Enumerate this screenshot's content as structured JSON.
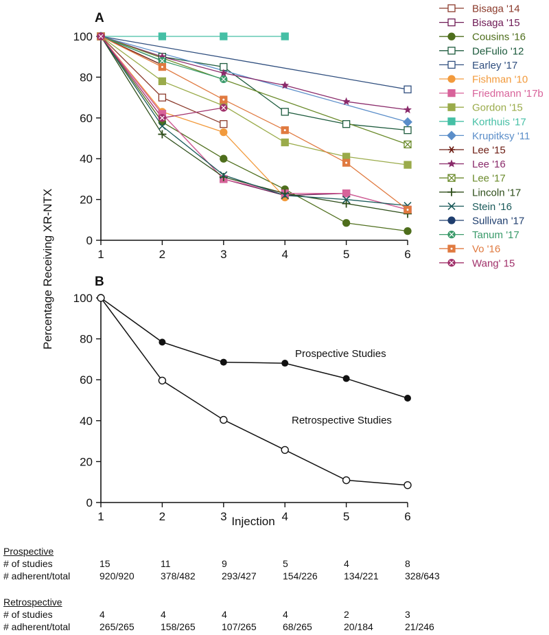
{
  "chart_data": [
    {
      "panel": "A",
      "type": "line",
      "xlabel": "",
      "ylabel": "Percentage Receiving XR-NTX",
      "x_ticks": [
        1,
        2,
        3,
        4,
        5,
        6
      ],
      "xlim": [
        1,
        6
      ],
      "ylim": [
        0,
        100
      ],
      "y_ticks": [
        0,
        20,
        40,
        60,
        80,
        100
      ],
      "legend_position": "right",
      "series": [
        {
          "name": "Bisaga '14",
          "color": "#8b3a2b",
          "marker": "square-open",
          "x": [
            1,
            2,
            3
          ],
          "y": [
            100,
            70,
            57
          ]
        },
        {
          "name": "Bisaga '15",
          "color": "#6e1a55",
          "marker": "square-open",
          "x": [
            1,
            2,
            3,
            4,
            5,
            6
          ],
          "y": [
            100,
            62,
            30,
            22,
            23,
            15
          ]
        },
        {
          "name": "Cousins '16",
          "color": "#4e6e1c",
          "marker": "circle-filled",
          "x": [
            1,
            2,
            3,
            4,
            5,
            6
          ],
          "y": [
            100,
            58,
            40,
            25,
            8.5,
            4.5
          ]
        },
        {
          "name": "DeFulio '12",
          "color": "#1c5a3c",
          "marker": "square-open",
          "x": [
            1,
            2,
            3,
            4,
            5,
            6
          ],
          "y": [
            100,
            90,
            85,
            63,
            57,
            54
          ]
        },
        {
          "name": "Earley '17",
          "color": "#2f4e7e",
          "marker": "square-open",
          "x": [
            1,
            6
          ],
          "y": [
            100,
            74
          ]
        },
        {
          "name": "Fishman '10",
          "color": "#f29a3c",
          "marker": "circle-filled",
          "x": [
            1,
            2,
            3,
            4
          ],
          "y": [
            100,
            63,
            53,
            21
          ]
        },
        {
          "name": "Friedmann '17b",
          "color": "#d8639a",
          "marker": "square-filled",
          "x": [
            1,
            2,
            3,
            4,
            5,
            6
          ],
          "y": [
            100,
            62,
            30,
            23,
            23,
            15
          ]
        },
        {
          "name": "Gordon '15",
          "color": "#9aab4a",
          "marker": "square-filled",
          "x": [
            1,
            2,
            3,
            4,
            5,
            6
          ],
          "y": [
            100,
            78,
            66,
            48,
            41,
            37
          ]
        },
        {
          "name": "Korthuis '17",
          "color": "#45bfa5",
          "marker": "square-filled",
          "x": [
            1,
            2,
            3,
            4
          ],
          "y": [
            100,
            100,
            100,
            100
          ]
        },
        {
          "name": "Krupitksy '11",
          "color": "#5b8ec9",
          "marker": "diamond-filled",
          "x": [
            1,
            6
          ],
          "y": [
            100,
            58
          ]
        },
        {
          "name": "Lee '15",
          "color": "#6b1a10",
          "marker": "asterisk",
          "x": [
            1,
            2
          ],
          "y": [
            100,
            86
          ]
        },
        {
          "name": "Lee '16",
          "color": "#8a2a6a",
          "marker": "star",
          "x": [
            1,
            2,
            3,
            4,
            5,
            6
          ],
          "y": [
            100,
            90,
            82,
            76,
            68,
            64
          ]
        },
        {
          "name": "Lee '17",
          "color": "#6a8a2a",
          "marker": "square-cross",
          "x": [
            1,
            6
          ],
          "y": [
            100,
            47
          ]
        },
        {
          "name": "Lincoln '17",
          "color": "#2e4e1a",
          "marker": "plus",
          "x": [
            1,
            2,
            3,
            4,
            5,
            6
          ],
          "y": [
            100,
            52,
            31,
            23,
            18,
            13
          ]
        },
        {
          "name": "Stein '16",
          "color": "#1a5a5a",
          "marker": "cross",
          "x": [
            1,
            2,
            3,
            4,
            5,
            6
          ],
          "y": [
            100,
            56,
            32,
            22,
            20,
            17
          ]
        },
        {
          "name": "Sullivan '17",
          "color": "#1f3e6e",
          "marker": "circle-filled",
          "x": [
            1,
            2
          ],
          "y": [
            100,
            88
          ]
        },
        {
          "name": "Tanum '17",
          "color": "#3a9a6a",
          "marker": "circle-cross",
          "x": [
            1,
            2,
            3
          ],
          "y": [
            100,
            88,
            79
          ]
        },
        {
          "name": "Vo '16",
          "color": "#e07a40",
          "marker": "square-dot",
          "x": [
            1,
            2,
            3,
            4,
            5,
            6
          ],
          "y": [
            100,
            85,
            69,
            54,
            38,
            15
          ]
        },
        {
          "name": "Wang' 15",
          "color": "#a0306a",
          "marker": "circle-cross",
          "x": [
            1,
            2,
            3
          ],
          "y": [
            100,
            60,
            65
          ]
        }
      ]
    },
    {
      "panel": "B",
      "type": "line",
      "xlabel": "Injection",
      "ylabel": "Percentage Receiving XR-NTX",
      "x_ticks": [
        1,
        2,
        3,
        4,
        5,
        6
      ],
      "xlim": [
        1,
        6
      ],
      "ylim": [
        0,
        100
      ],
      "y_ticks": [
        0,
        20,
        40,
        60,
        80,
        100
      ],
      "series": [
        {
          "name": "Prospective Studies",
          "marker": "circle-filled",
          "x": [
            1,
            2,
            3,
            4,
            5,
            6
          ],
          "y": [
            100,
            78.4,
            68.6,
            68.1,
            60.6,
            51.0
          ]
        },
        {
          "name": "Retrospective Studies",
          "marker": "circle-open",
          "x": [
            1,
            2,
            3,
            4,
            5,
            6
          ],
          "y": [
            100,
            59.6,
            40.4,
            25.7,
            10.9,
            8.5
          ]
        }
      ]
    }
  ],
  "tables": [
    {
      "heading": "Prospective",
      "rows": [
        {
          "label": "# of studies",
          "values": [
            "15",
            "11",
            "9",
            "5",
            "4",
            "8"
          ]
        },
        {
          "label": "# adherent/total",
          "values": [
            "920/920",
            "378/482",
            "293/427",
            "154/226",
            "134/221",
            "328/643"
          ]
        }
      ]
    },
    {
      "heading": "Retrospective",
      "rows": [
        {
          "label": "# of studies",
          "values": [
            "4",
            "4",
            "4",
            "4",
            "2",
            "3"
          ]
        },
        {
          "label": "# adherent/total",
          "values": [
            "265/265",
            "158/265",
            "107/265",
            "68/265",
            "20/184",
            "21/246"
          ]
        }
      ]
    }
  ]
}
